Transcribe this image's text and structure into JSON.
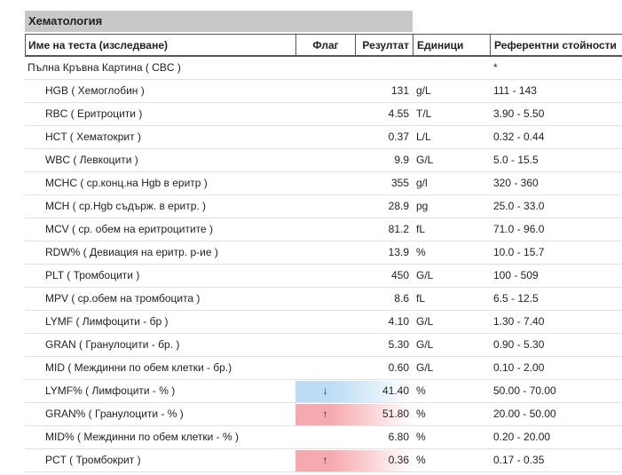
{
  "header": {
    "title": "Хематология"
  },
  "table": {
    "columns": [
      "Име на теста (изследване)",
      "Флаг",
      "Резултат",
      "Единици",
      "Референтни стойности"
    ],
    "rows": [
      {
        "name": "Пълна Кръвна Картина ( CBC )",
        "reference": "*",
        "group": true
      },
      {
        "name": "HGB ( Хемоглобин )",
        "result": "131",
        "units": "g/L",
        "reference": "111 - 143"
      },
      {
        "name": "RBC ( Еритроцити )",
        "result": "4.55",
        "units": "T/L",
        "reference": "3.90 - 5.50"
      },
      {
        "name": "HCT ( Хематокрит )",
        "result": "0.37",
        "units": "L/L",
        "reference": "0.32 - 0.44"
      },
      {
        "name": "WBC ( Левкоцити )",
        "result": "9.9",
        "units": "G/L",
        "reference": "5.0 - 15.5"
      },
      {
        "name": "MCHC ( ср.конц.на Hgb в еритр )",
        "result": "355",
        "units": "g/l",
        "reference": "320 - 360"
      },
      {
        "name": "MCH ( ср.Hgb съдърж. в еритр. )",
        "result": "28.9",
        "units": "pg",
        "reference": "25.0 - 33.0"
      },
      {
        "name": "MCV ( ср. обем на еритроцитите )",
        "result": "81.2",
        "units": "fL",
        "reference": "71.0 - 96.0"
      },
      {
        "name": "RDW% ( Девиация на еритр. р-ие )",
        "result": "13.9",
        "units": "%",
        "reference": "10.0 - 15.7"
      },
      {
        "name": "PLT ( Тромбоцити )",
        "result": "450",
        "units": "G/L",
        "reference": "100 - 509"
      },
      {
        "name": "MPV ( ср.обем на тромбоцита )",
        "result": "8.6",
        "units": "fL",
        "reference": "6.5 - 12.5"
      },
      {
        "name": "LYMF ( Лимфоцити - бр )",
        "result": "4.10",
        "units": "G/L",
        "reference": "1.30 - 7.40"
      },
      {
        "name": "GRAN ( Гранулоцити - бр. )",
        "result": "5.30",
        "units": "G/L",
        "reference": "0.90 - 5.30"
      },
      {
        "name": "MID ( Междинни по обем клетки - бр.)",
        "result": "0.60",
        "units": "G/L",
        "reference": "0.10 - 2.00"
      },
      {
        "name": "LYMF% ( Лимфоцити - % )",
        "flag": "↓",
        "flag_color": "#bcdcf5",
        "result": "41.40",
        "units": "%",
        "reference": "50.00 - 70.00"
      },
      {
        "name": "GRAN% ( Гранулоцити - % )",
        "flag": "↑",
        "flag_color": "#f6a9ae",
        "result": "51.80",
        "units": "%",
        "reference": "20.00 - 50.00"
      },
      {
        "name": "MID% ( Междинни по обем клетки - % )",
        "result": "6.80",
        "units": "%",
        "reference": "0.20 - 20.00"
      },
      {
        "name": "PCT ( Тромбокрит )",
        "flag": "↑",
        "flag_color": "#f6a9ae",
        "result": "0.36",
        "units": "%",
        "reference": "0.17 - 0.35"
      }
    ]
  }
}
